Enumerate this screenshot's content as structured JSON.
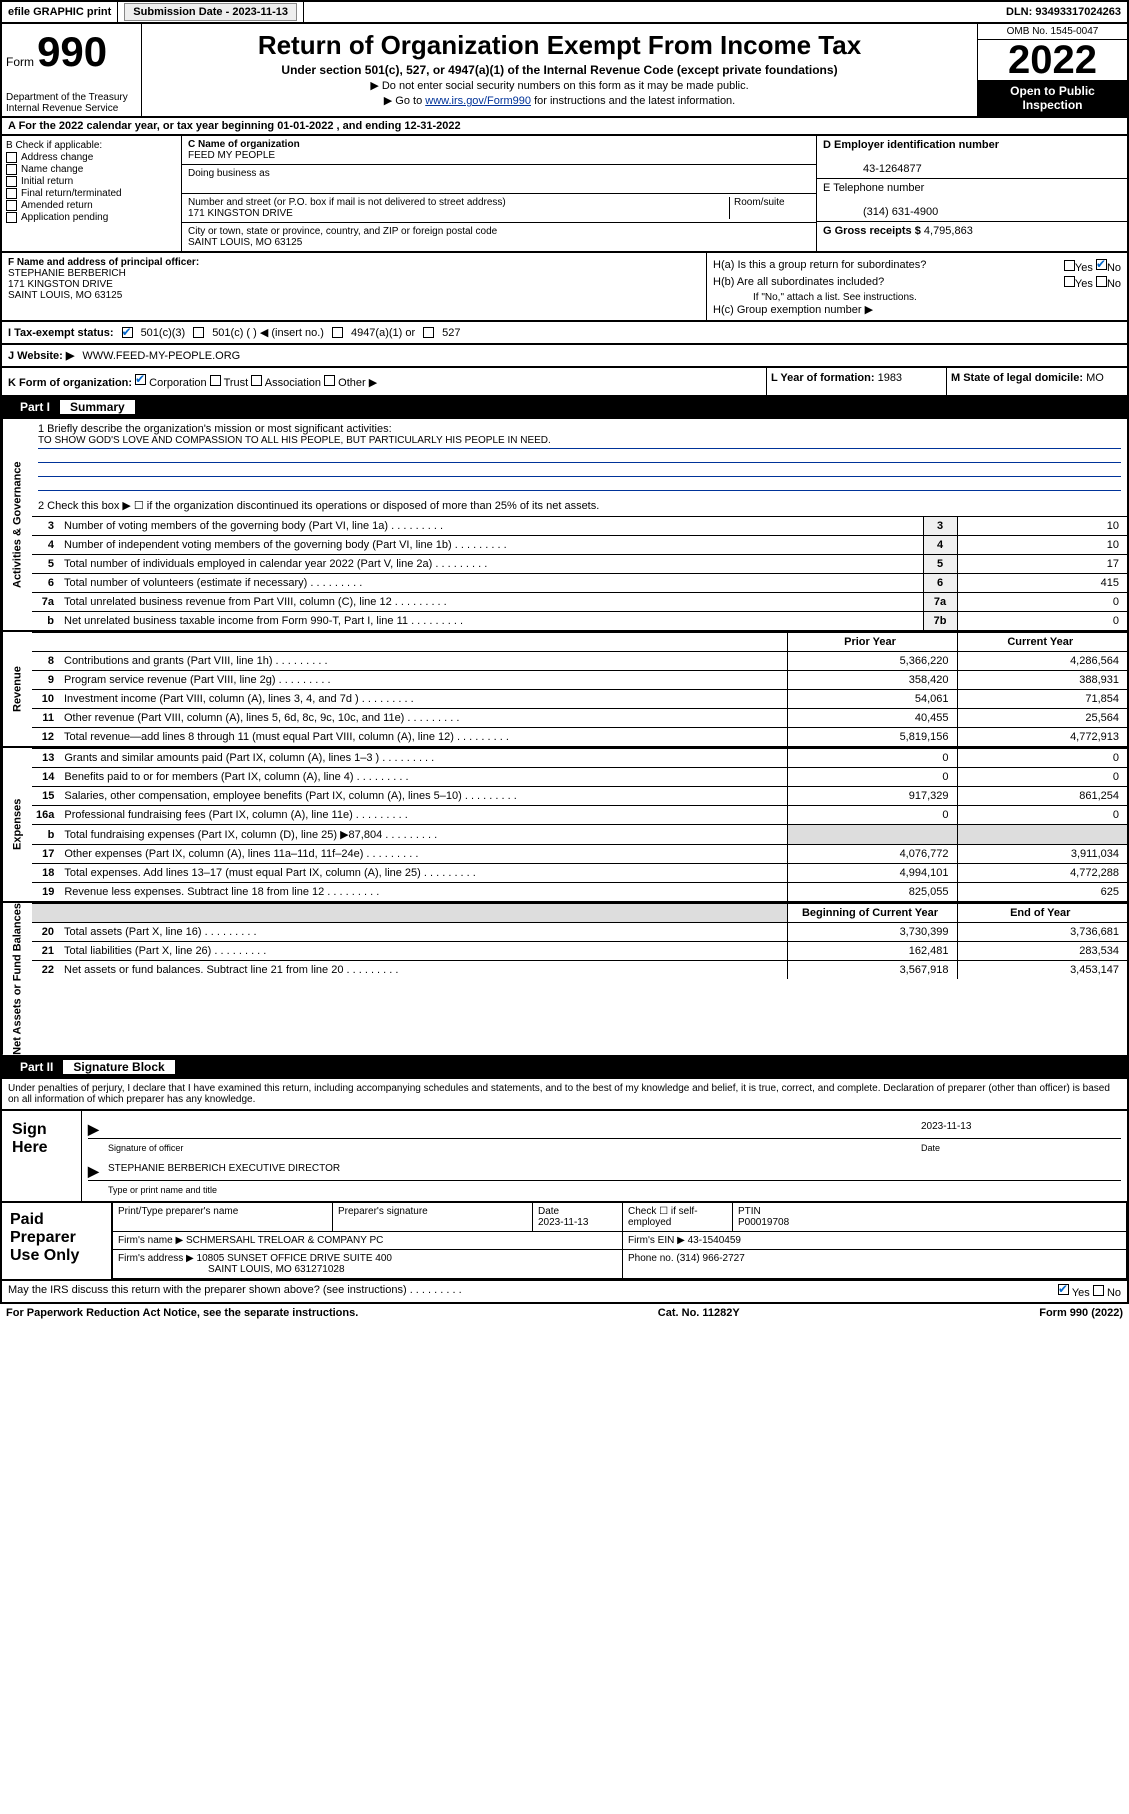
{
  "topbar": {
    "efile": "efile GRAPHIC print",
    "sub_label": "Submission Date - ",
    "sub_date": "2023-11-13",
    "dln": "DLN: 93493317024263"
  },
  "header": {
    "form_word": "Form",
    "form_num": "990",
    "dept": "Department of the Treasury\nInternal Revenue Service",
    "title": "Return of Organization Exempt From Income Tax",
    "sub": "Under section 501(c), 527, or 4947(a)(1) of the Internal Revenue Code (except private foundations)",
    "note1": "▶ Do not enter social security numbers on this form as it may be made public.",
    "note2_pre": "▶ Go to ",
    "note2_link": "www.irs.gov/Form990",
    "note2_post": " for instructions and the latest information.",
    "omb": "OMB No. 1545-0047",
    "year": "2022",
    "inspect": "Open to Public Inspection"
  },
  "row_a": "A  For the 2022 calendar year, or tax year beginning 01-01-2022    , and ending 12-31-2022",
  "b": {
    "label": "B Check if applicable:",
    "opts": [
      "Address change",
      "Name change",
      "Initial return",
      "Final return/terminated",
      "Amended return",
      "Application pending"
    ]
  },
  "c": {
    "name_lbl": "C Name of organization",
    "name": "FEED MY PEOPLE",
    "dba_lbl": "Doing business as",
    "street_lbl": "Number and street (or P.O. box if mail is not delivered to street address)",
    "room_lbl": "Room/suite",
    "street": "171 KINGSTON DRIVE",
    "city_lbl": "City or town, state or province, country, and ZIP or foreign postal code",
    "city": "SAINT LOUIS, MO  63125"
  },
  "d": {
    "lbl": "D Employer identification number",
    "val": "43-1264877"
  },
  "e": {
    "lbl": "E Telephone number",
    "val": "(314) 631-4900"
  },
  "g": {
    "lbl": "G Gross receipts $",
    "val": "4,795,863"
  },
  "f": {
    "lbl": "F Name and address of principal officer:",
    "name": "STEPHANIE BERBERICH",
    "addr1": "171 KINGSTON DRIVE",
    "addr2": "SAINT LOUIS, MO  63125"
  },
  "h": {
    "a": "H(a)  Is this a group return for subordinates?",
    "b": "H(b)  Are all subordinates included?",
    "b_note": "If \"No,\" attach a list. See instructions.",
    "c": "H(c)  Group exemption number ▶"
  },
  "i": {
    "lbl": "I    Tax-exempt status:",
    "o1": "501(c)(3)",
    "o2": "501(c) (  ) ◀ (insert no.)",
    "o3": "4947(a)(1) or",
    "o4": "527"
  },
  "j": {
    "lbl": "J   Website: ▶",
    "val": "WWW.FEED-MY-PEOPLE.ORG"
  },
  "k": {
    "lbl": "K Form of organization:",
    "o1": "Corporation",
    "o2": "Trust",
    "o3": "Association",
    "o4": "Other ▶"
  },
  "l": {
    "lbl": "L Year of formation:",
    "val": "1983"
  },
  "m": {
    "lbl": "M State of legal domicile:",
    "val": "MO"
  },
  "part1": {
    "num": "Part I",
    "title": "Summary"
  },
  "mission": {
    "lbl": "1   Briefly describe the organization's mission or most significant activities:",
    "text": "TO SHOW GOD'S LOVE AND COMPASSION TO ALL HIS PEOPLE, BUT PARTICULARLY HIS PEOPLE IN NEED."
  },
  "line2": "2   Check this box ▶ ☐  if the organization discontinued its operations or disposed of more than 25% of its net assets.",
  "gov_rows": [
    {
      "n": "3",
      "d": "Number of voting members of the governing body (Part VI, line 1a)",
      "box": "3",
      "v": "10"
    },
    {
      "n": "4",
      "d": "Number of independent voting members of the governing body (Part VI, line 1b)",
      "box": "4",
      "v": "10"
    },
    {
      "n": "5",
      "d": "Total number of individuals employed in calendar year 2022 (Part V, line 2a)",
      "box": "5",
      "v": "17"
    },
    {
      "n": "6",
      "d": "Total number of volunteers (estimate if necessary)",
      "box": "6",
      "v": "415"
    },
    {
      "n": "7a",
      "d": "Total unrelated business revenue from Part VIII, column (C), line 12",
      "box": "7a",
      "v": "0"
    },
    {
      "n": "b",
      "d": "Net unrelated business taxable income from Form 990-T, Part I, line 11",
      "box": "7b",
      "v": "0"
    }
  ],
  "col_hdrs": {
    "prior": "Prior Year",
    "current": "Current Year"
  },
  "rev_rows": [
    {
      "n": "8",
      "d": "Contributions and grants (Part VIII, line 1h)",
      "p": "5,366,220",
      "c": "4,286,564"
    },
    {
      "n": "9",
      "d": "Program service revenue (Part VIII, line 2g)",
      "p": "358,420",
      "c": "388,931"
    },
    {
      "n": "10",
      "d": "Investment income (Part VIII, column (A), lines 3, 4, and 7d )",
      "p": "54,061",
      "c": "71,854"
    },
    {
      "n": "11",
      "d": "Other revenue (Part VIII, column (A), lines 5, 6d, 8c, 9c, 10c, and 11e)",
      "p": "40,455",
      "c": "25,564"
    },
    {
      "n": "12",
      "d": "Total revenue—add lines 8 through 11 (must equal Part VIII, column (A), line 12)",
      "p": "5,819,156",
      "c": "4,772,913"
    }
  ],
  "exp_rows": [
    {
      "n": "13",
      "d": "Grants and similar amounts paid (Part IX, column (A), lines 1–3 )",
      "p": "0",
      "c": "0"
    },
    {
      "n": "14",
      "d": "Benefits paid to or for members (Part IX, column (A), line 4)",
      "p": "0",
      "c": "0"
    },
    {
      "n": "15",
      "d": "Salaries, other compensation, employee benefits (Part IX, column (A), lines 5–10)",
      "p": "917,329",
      "c": "861,254"
    },
    {
      "n": "16a",
      "d": "Professional fundraising fees (Part IX, column (A), line 11e)",
      "p": "0",
      "c": "0"
    },
    {
      "n": "b",
      "d": "Total fundraising expenses (Part IX, column (D), line 25) ▶87,804",
      "p": "",
      "c": "",
      "shade": true
    },
    {
      "n": "17",
      "d": "Other expenses (Part IX, column (A), lines 11a–11d, 11f–24e)",
      "p": "4,076,772",
      "c": "3,911,034"
    },
    {
      "n": "18",
      "d": "Total expenses. Add lines 13–17 (must equal Part IX, column (A), line 25)",
      "p": "4,994,101",
      "c": "4,772,288"
    },
    {
      "n": "19",
      "d": "Revenue less expenses. Subtract line 18 from line 12",
      "p": "825,055",
      "c": "625"
    }
  ],
  "na_hdrs": {
    "beg": "Beginning of Current Year",
    "end": "End of Year"
  },
  "na_rows": [
    {
      "n": "20",
      "d": "Total assets (Part X, line 16)",
      "p": "3,730,399",
      "c": "3,736,681"
    },
    {
      "n": "21",
      "d": "Total liabilities (Part X, line 26)",
      "p": "162,481",
      "c": "283,534"
    },
    {
      "n": "22",
      "d": "Net assets or fund balances. Subtract line 21 from line 20",
      "p": "3,567,918",
      "c": "3,453,147"
    }
  ],
  "vtabs": {
    "gov": "Activities & Governance",
    "rev": "Revenue",
    "exp": "Expenses",
    "na": "Net Assets or Fund Balances"
  },
  "part2": {
    "num": "Part II",
    "title": "Signature Block"
  },
  "sig_intro": "Under penalties of perjury, I declare that I have examined this return, including accompanying schedules and statements, and to the best of my knowledge and belief, it is true, correct, and complete. Declaration of preparer (other than officer) is based on all information of which preparer has any knowledge.",
  "sign": {
    "here": "Sign Here",
    "sig_lbl": "Signature of officer",
    "date_lbl": "Date",
    "date": "2023-11-13",
    "name": "STEPHANIE BERBERICH  EXECUTIVE DIRECTOR",
    "name_lbl": "Type or print name and title"
  },
  "prep": {
    "title": "Paid Preparer Use Only",
    "h1": "Print/Type preparer's name",
    "h2": "Preparer's signature",
    "h3": "Date",
    "h3v": "2023-11-13",
    "h4": "Check ☐ if self-employed",
    "h5": "PTIN",
    "h5v": "P00019708",
    "firm_lbl": "Firm's name    ▶",
    "firm": "SCHMERSAHL TRELOAR & COMPANY PC",
    "ein_lbl": "Firm's EIN ▶",
    "ein": "43-1540459",
    "addr_lbl": "Firm's address ▶",
    "addr1": "10805 SUNSET OFFICE DRIVE SUITE 400",
    "addr2": "SAINT LOUIS, MO  631271028",
    "phone_lbl": "Phone no.",
    "phone": "(314) 966-2727"
  },
  "footer": {
    "q": "May the IRS discuss this return with the preparer shown above? (see instructions)",
    "yes": "Yes",
    "no": "No",
    "pra": "For Paperwork Reduction Act Notice, see the separate instructions.",
    "cat": "Cat. No. 11282Y",
    "form": "Form 990 (2022)"
  }
}
